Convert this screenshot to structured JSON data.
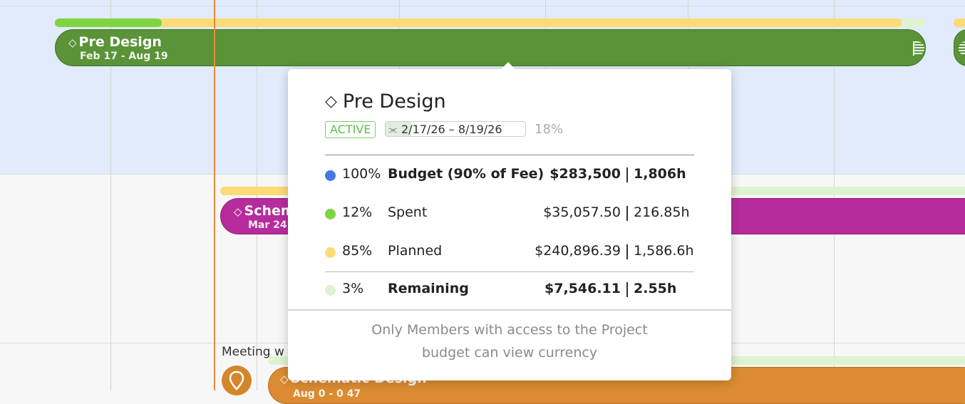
{
  "colors": {
    "pre_design": "#5a9338",
    "schematic": "#b62c9c",
    "schematic_design": "#db8b32",
    "today_line": "#e8893a",
    "budget": "#4479e2",
    "spent": "#7ed443",
    "planned": "#fbdb76",
    "remaining": "#dff2d2"
  },
  "timeline": {
    "pre_design_bar": {
      "name": "Pre Design",
      "dates": "Feb 17 - Aug 19",
      "icon": "diamond-icon"
    },
    "schematic_bar": {
      "name": "Schem",
      "dates": "Mar 24"
    },
    "meeting_label": "Meeting w",
    "schematic_design_bar": {
      "name": "Schematic Design",
      "dates": "Aug 0 - 0 47"
    }
  },
  "tooltip": {
    "title": "Pre Design",
    "title_icon": "diamond-icon",
    "status": "ACTIVE",
    "date_range": "2/17/26  –  8/19/26",
    "percent_complete": "18%",
    "rows": [
      {
        "color": "#4479e2",
        "percent": "100%",
        "label": "Budget (90% of Fee)",
        "amount": "$283,500",
        "hours": "1,806h",
        "bold": true
      },
      {
        "color": "#7ed443",
        "percent": "12%",
        "label": "Spent",
        "amount": "$35,057.50",
        "hours": "216.85h",
        "bold": false
      },
      {
        "color": "#fbdb76",
        "percent": "85%",
        "label": "Planned",
        "amount": "$240,896.39",
        "hours": "1,586.6h",
        "bold": false
      },
      {
        "color": "#dff2d2",
        "percent": "3%",
        "label": "Remaining",
        "amount": "$7,546.11",
        "hours": "2.55h",
        "bold": true
      }
    ],
    "note_line1": "Only Members with access to the Project",
    "note_line2": "budget can view currency"
  }
}
